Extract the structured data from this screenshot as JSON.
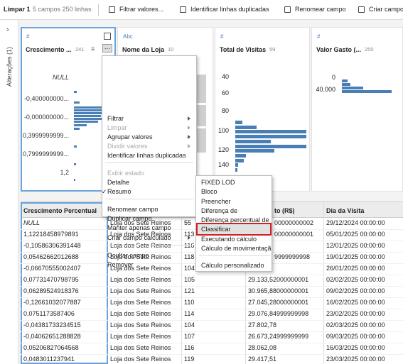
{
  "toolbar": {
    "step": "Limpar 1",
    "summary": "5 campos 250 linhas",
    "actions": [
      "Filtrar valores...",
      "Identificar linhas duplicadas",
      "Renomear campo",
      "Criar campo"
    ]
  },
  "sidebar": {
    "label": "Alterações (1)"
  },
  "profile_cards": [
    {
      "type_icon": "#",
      "name": "Crescimento ...",
      "count": 241,
      "labels": [
        "NULL",
        "-0,400000000...",
        "-0,000000000...",
        "0,3999999999...",
        "0,7999999999...",
        "1,2"
      ]
    },
    {
      "type_icon": "Abc",
      "name": "Nome da Loja",
      "count": 10,
      "labels": []
    },
    {
      "type_icon": "#",
      "name": "Total de Visitas",
      "count": 59,
      "labels": [
        40,
        60,
        80,
        100,
        120,
        140
      ]
    },
    {
      "type_icon": "#",
      "name": "Valor Gasto (...",
      "count": 250,
      "labels": [
        0,
        "40.000"
      ]
    }
  ],
  "context_menu": {
    "items": [
      {
        "label": "Filtrar",
        "arrow": true
      },
      {
        "label": "Limpar",
        "arrow": true,
        "disabled": true
      },
      {
        "label": "Agrupar valores",
        "arrow": true
      },
      {
        "label": "Dividir valores",
        "arrow": true,
        "disabled": true
      },
      {
        "label": "Identificar linhas duplicadas",
        "separator_after": true
      },
      {
        "label": "Exibir estado",
        "disabled": true
      },
      {
        "label": "Detalhe"
      },
      {
        "label": "Resumo",
        "check": "✓",
        "separator_after": true
      },
      {
        "label": "Renomear campo"
      },
      {
        "label": "Duplicar campo"
      },
      {
        "label": "Manter apenas campo"
      },
      {
        "label": "Criar campo calculado",
        "arrow": true,
        "separator_after": true
      },
      {
        "label": "Ocultar campo"
      },
      {
        "label": "Remover"
      }
    ]
  },
  "submenu": {
    "selected": 5,
    "items": [
      {
        "label": "FIXED LOD"
      },
      {
        "label": "Bloco"
      },
      {
        "label": "Preencher"
      },
      {
        "label": "Diferença de"
      },
      {
        "label": "Diferença percentual de"
      },
      {
        "label": "Classificar"
      },
      {
        "label": "Executando cálculo"
      },
      {
        "label": "Cálculo de movimentação",
        "separator_after": true
      },
      {
        "label": "Cálculo personalizado"
      }
    ]
  },
  "table": {
    "columns": [
      "Crescimento Percentual",
      null,
      null,
      "to (R$)",
      "Dia da Visita"
    ],
    "rows": [
      [
        "NULL",
        "Loja dos Sete Reinos",
        55,
        "00000000002",
        "29/12/2024 00:00:00"
      ],
      [
        "1,12218458979891",
        "Loja dos Sete Reinos",
        113,
        "00000000001",
        "05/01/2025 00:00:00"
      ],
      [
        "-0,10586306391448",
        "Loja dos Sete Reinos",
        116,
        null,
        "12/01/2025 00:00:00"
      ],
      [
        "0,05462662012688",
        "Loja dos Sete Reinos",
        118,
        "9999999998",
        "19/01/2025 00:00:00"
      ],
      [
        "-0,06670555002407",
        "Loja dos Sete Reinos",
        104,
        null,
        "26/01/2025 00:00:00"
      ],
      [
        "0,07731470798795",
        "Loja dos Sete Reinos",
        105,
        "29.133,52000000001",
        "02/02/2025 00:00:00"
      ],
      [
        "0,06289524918376",
        "Loja dos Sete Reinos",
        121,
        "30.965,88000000001",
        "09/02/2025 00:00:00"
      ],
      [
        "-0,12661032077887",
        "Loja dos Sete Reinos",
        110,
        "27.045,28000000001",
        "16/02/2025 00:00:00"
      ],
      [
        "0,0751173587406",
        "Loja dos Sete Reinos",
        114,
        "29.076,84999999998",
        "23/02/2025 00:00:00"
      ],
      [
        "-0,04381733234515",
        "Loja dos Sete Reinos",
        104,
        "27.802,78",
        "02/03/2025 00:00:00"
      ],
      [
        "-0,04062651288828",
        "Loja dos Sete Reinos",
        107,
        "26.673,24999999999",
        "09/03/2025 00:00:00"
      ],
      [
        "0,05206827064568",
        "Loja dos Sete Reinos",
        116,
        "28.062,08",
        "16/03/2025 00:00:00"
      ],
      [
        "0,0483011237941",
        "Loja dos Sete Reinos",
        119,
        "29.417,51",
        "23/03/2025 00:00:00"
      ]
    ]
  }
}
